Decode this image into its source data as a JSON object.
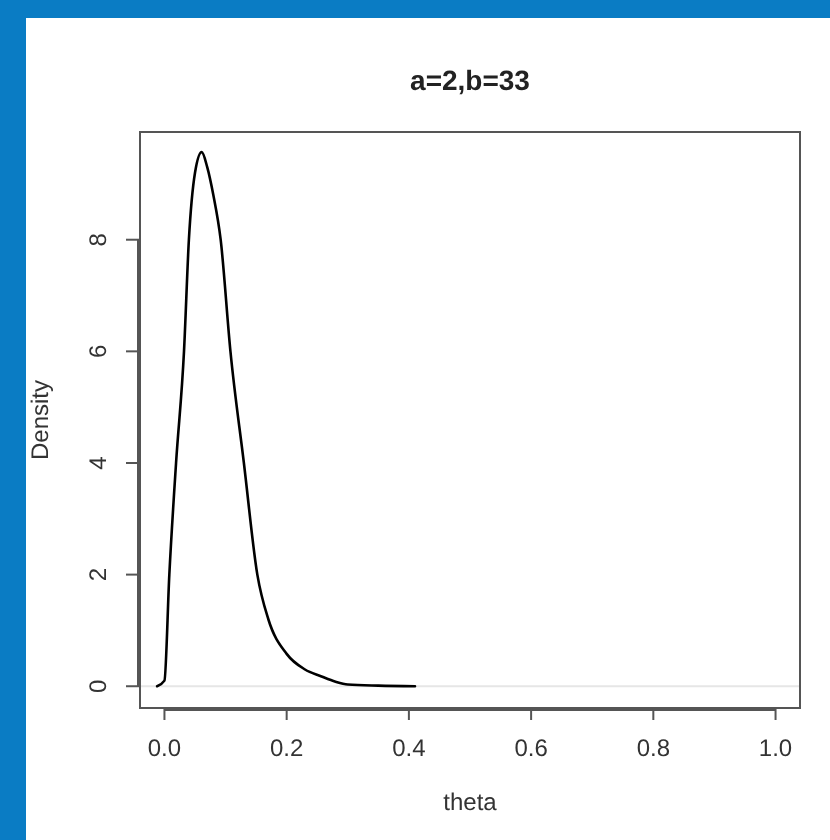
{
  "chart_data": {
    "type": "line",
    "title": "a=2,b=33",
    "xlabel": "theta",
    "ylabel": "Density",
    "x": [
      -0.012,
      0,
      0.008,
      0.019,
      0.032,
      0.04,
      0.05,
      0.061,
      0.07,
      0.08,
      0.092,
      0.108,
      0.13,
      0.152,
      0.17,
      0.2,
      0.23,
      0.256,
      0.28,
      0.3,
      0.35,
      0.41
    ],
    "series": [
      {
        "color": "#000000",
        "values": [
          0,
          0.1,
          2,
          4,
          6,
          8,
          9.2,
          9.57,
          9.3,
          8.8,
          8,
          6,
          4,
          2,
          1.2,
          0.58,
          0.3,
          0.18,
          0.08,
          0.03,
          0.01,
          0
        ]
      }
    ],
    "xlim": [
      -0.04,
      1.04
    ],
    "ylim": [
      -0.39,
      9.93
    ],
    "xticks": [
      {
        "value": 0,
        "label": "0.0"
      },
      0.2,
      0.4,
      0.6,
      0.8,
      {
        "value": 1,
        "label": "1.0"
      }
    ],
    "yticks": [
      0,
      2,
      4,
      6,
      8
    ],
    "ref_lines": [
      {
        "axis": "y",
        "value": 0,
        "color": "#e6e6e6"
      }
    ],
    "grid": false,
    "marker": "none",
    "line_style": "solid"
  }
}
